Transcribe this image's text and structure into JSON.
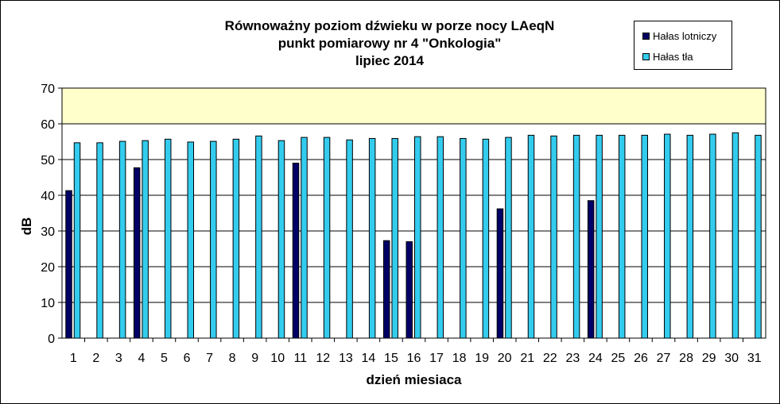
{
  "chart_data": {
    "type": "bar",
    "title": [
      "Równoważny poziom dźwieku w porze nocy LAeqN",
      "punkt pomiarowy nr 4 \"Onkologia\"",
      "lipiec 2014"
    ],
    "xlabel": "dzień miesiaca",
    "ylabel": "dB",
    "ylim": [
      0,
      70
    ],
    "yticks": [
      0,
      10,
      20,
      30,
      40,
      50,
      60,
      70
    ],
    "grid": true,
    "legend_position": "top-right",
    "categories": [
      "1",
      "2",
      "3",
      "4",
      "5",
      "6",
      "7",
      "8",
      "9",
      "10",
      "11",
      "12",
      "13",
      "14",
      "15",
      "16",
      "17",
      "18",
      "19",
      "20",
      "21",
      "22",
      "23",
      "24",
      "25",
      "26",
      "27",
      "28",
      "29",
      "30",
      "31"
    ],
    "series": [
      {
        "name": "Hałas lotniczy",
        "color": "#000066",
        "values": [
          41.3,
          null,
          null,
          47.7,
          null,
          null,
          null,
          null,
          null,
          null,
          49.0,
          null,
          null,
          null,
          27.3,
          27.0,
          null,
          null,
          null,
          36.2,
          null,
          null,
          null,
          38.5,
          null,
          null,
          null,
          null,
          null,
          null,
          null
        ]
      },
      {
        "name": "Hałas tła",
        "color": "#33CCEE",
        "values": [
          54.7,
          54.7,
          55.1,
          55.3,
          55.7,
          54.9,
          55.1,
          55.7,
          56.6,
          55.3,
          56.2,
          56.2,
          55.5,
          55.9,
          55.9,
          56.4,
          56.4,
          55.9,
          55.7,
          56.2,
          56.8,
          56.6,
          56.8,
          56.8,
          56.8,
          56.8,
          57.1,
          56.8,
          57.1,
          57.5,
          56.8
        ]
      }
    ],
    "colors": {
      "upper_band": "#FFFFCC",
      "plot_background": "#FFFFFF",
      "grid": "#000000",
      "bar_border": "#000000"
    }
  }
}
